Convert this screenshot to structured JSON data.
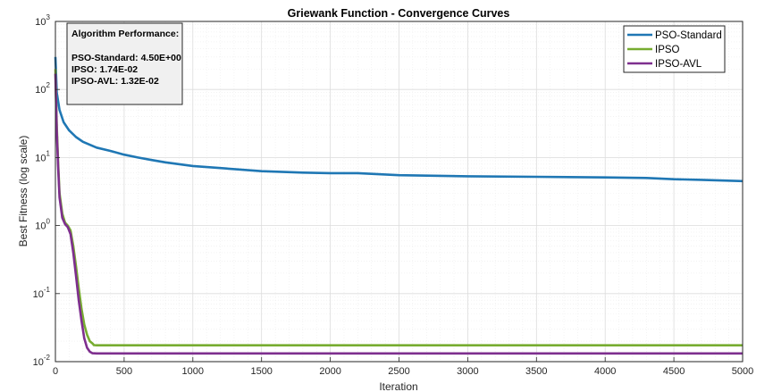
{
  "chart_data": {
    "type": "line",
    "title": "Griewank Function - Convergence Curves",
    "xlabel": "Iteration",
    "ylabel": "Best Fitness (log scale)",
    "xlim": [
      0,
      5000
    ],
    "ylim": [
      0.01,
      1000
    ],
    "yscale": "log",
    "grid": true,
    "legend_position": "top-right",
    "x_ticks": [
      0,
      500,
      1000,
      1500,
      2000,
      2500,
      3000,
      3500,
      4000,
      4500,
      5000
    ],
    "y_ticks": [
      {
        "value": 0.01,
        "base": "10",
        "exp": "-2"
      },
      {
        "value": 0.1,
        "base": "10",
        "exp": "-1"
      },
      {
        "value": 1,
        "base": "10",
        "exp": "0"
      },
      {
        "value": 10,
        "base": "10",
        "exp": "1"
      },
      {
        "value": 100,
        "base": "10",
        "exp": "2"
      },
      {
        "value": 1000,
        "base": "10",
        "exp": "3"
      }
    ],
    "series": [
      {
        "name": "PSO-Standard",
        "color": "#1f77b4",
        "x": [
          0,
          10,
          30,
          60,
          100,
          150,
          200,
          300,
          400,
          500,
          600,
          700,
          800,
          1000,
          1200,
          1500,
          1800,
          2000,
          2200,
          2500,
          3000,
          3500,
          4000,
          4300,
          4500,
          4700,
          5000
        ],
        "y": [
          300,
          90,
          50,
          33,
          25,
          20,
          17,
          14,
          12.5,
          11,
          10,
          9.2,
          8.5,
          7.5,
          7,
          6.3,
          6,
          5.9,
          5.9,
          5.5,
          5.3,
          5.2,
          5.1,
          5.0,
          4.8,
          4.7,
          4.5
        ]
      },
      {
        "name": "IPSO",
        "color": "#77ac30",
        "x": [
          0,
          10,
          20,
          30,
          50,
          70,
          90,
          110,
          130,
          150,
          170,
          190,
          210,
          230,
          250,
          270,
          280,
          300,
          400,
          1000,
          2000,
          3000,
          4000,
          5000
        ],
        "y": [
          200,
          30,
          8,
          3,
          1.5,
          1.1,
          1.0,
          0.85,
          0.5,
          0.25,
          0.12,
          0.06,
          0.035,
          0.025,
          0.02,
          0.0185,
          0.0175,
          0.0174,
          0.0174,
          0.0174,
          0.0174,
          0.0174,
          0.0174,
          0.0174
        ]
      },
      {
        "name": "IPSO-AVL",
        "color": "#7e2f8e",
        "x": [
          0,
          10,
          20,
          30,
          50,
          70,
          90,
          110,
          130,
          150,
          170,
          190,
          210,
          230,
          250,
          270,
          300,
          400,
          1000,
          2000,
          3000,
          4000,
          5000
        ],
        "y": [
          170,
          25,
          7,
          2.6,
          1.3,
          1.05,
          0.95,
          0.75,
          0.4,
          0.18,
          0.08,
          0.04,
          0.022,
          0.016,
          0.014,
          0.0133,
          0.0132,
          0.0132,
          0.0132,
          0.0132,
          0.0132,
          0.0132,
          0.0132
        ]
      }
    ],
    "annotation": {
      "heading": "Algorithm Performance:",
      "lines": [
        "PSO-Standard: 4.50E+00",
        "IPSO: 1.74E-02",
        "IPSO-AVL: 1.32E-02"
      ]
    }
  }
}
